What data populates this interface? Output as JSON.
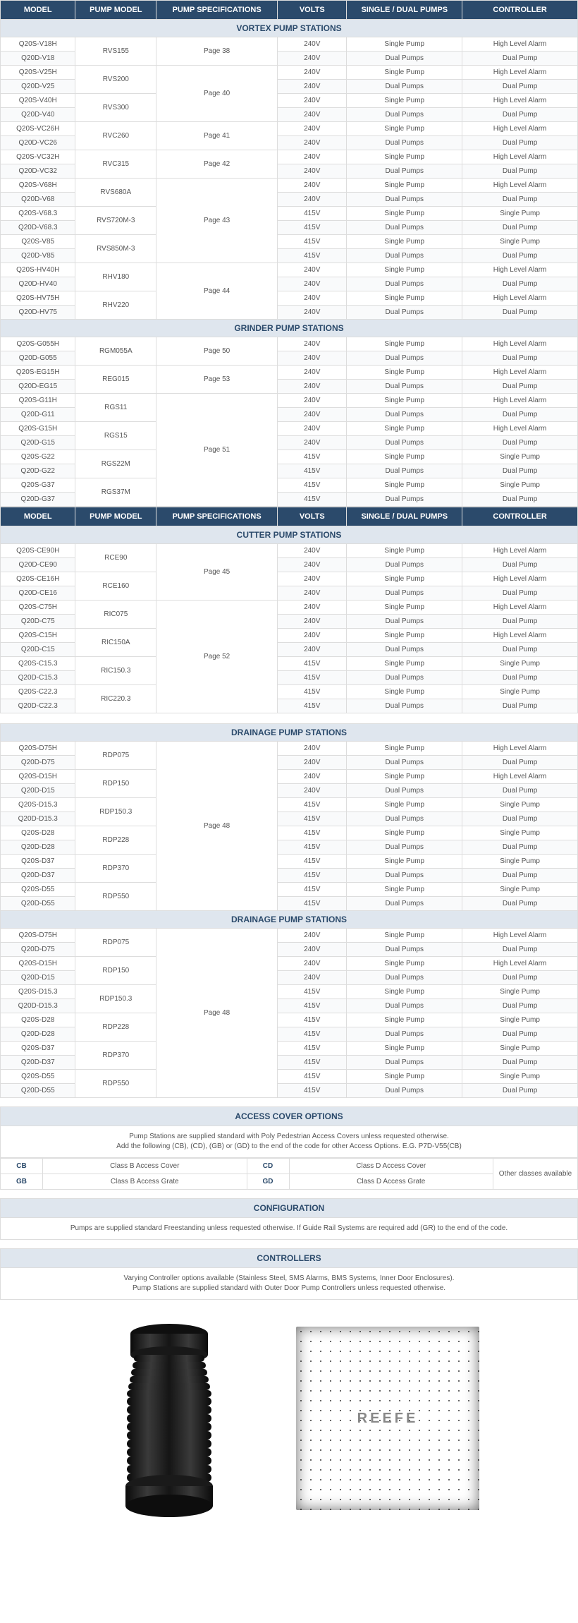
{
  "headers": [
    "MODEL",
    "PUMP MODEL",
    "PUMP SPECIFICATIONS",
    "VOLTS",
    "SINGLE / DUAL PUMPS",
    "CONTROLLER"
  ],
  "sections": [
    {
      "title": "VORTEX PUMP STATIONS",
      "groups": [
        {
          "pump": "RVS155",
          "spec": "Page 38",
          "rows": [
            [
              "Q20S-V18H",
              "240V",
              "Single Pump",
              "High Level Alarm"
            ],
            [
              "Q20D-V18",
              "240V",
              "Dual Pumps",
              "Dual Pump"
            ]
          ]
        },
        {
          "pump": "RVS200",
          "spec": "Page 40",
          "specSpan": 4,
          "rows": [
            [
              "Q20S-V25H",
              "240V",
              "Single Pump",
              "High Level Alarm"
            ],
            [
              "Q20D-V25",
              "240V",
              "Dual Pumps",
              "Dual Pump"
            ]
          ]
        },
        {
          "pump": "RVS300",
          "rows": [
            [
              "Q20S-V40H",
              "240V",
              "Single Pump",
              "High Level Alarm"
            ],
            [
              "Q20D-V40",
              "240V",
              "Dual Pumps",
              "Dual Pump"
            ]
          ]
        },
        {
          "pump": "RVC260",
          "spec": "Page 41",
          "rows": [
            [
              "Q20S-VC26H",
              "240V",
              "Single Pump",
              "High Level Alarm"
            ],
            [
              "Q20D-VC26",
              "240V",
              "Dual Pumps",
              "Dual Pump"
            ]
          ]
        },
        {
          "pump": "RVC315",
          "spec": "Page 42",
          "rows": [
            [
              "Q20S-VC32H",
              "240V",
              "Single Pump",
              "High Level Alarm"
            ],
            [
              "Q20D-VC32",
              "240V",
              "Dual Pumps",
              "Dual Pump"
            ]
          ]
        },
        {
          "pump": "RVS680A",
          "spec": "Page 43",
          "specSpan": 6,
          "rows": [
            [
              "Q20S-V68H",
              "240V",
              "Single Pump",
              "High Level Alarm"
            ],
            [
              "Q20D-V68",
              "240V",
              "Dual Pumps",
              "Dual Pump"
            ]
          ]
        },
        {
          "pump": "RVS720M-3",
          "rows": [
            [
              "Q20S-V68.3",
              "415V",
              "Single Pump",
              "Single Pump"
            ],
            [
              "Q20D-V68.3",
              "415V",
              "Dual Pumps",
              "Dual Pump"
            ]
          ]
        },
        {
          "pump": "RVS850M-3",
          "rows": [
            [
              "Q20S-V85",
              "415V",
              "Single Pump",
              "Single Pump"
            ],
            [
              "Q20D-V85",
              "415V",
              "Dual Pumps",
              "Dual Pump"
            ]
          ]
        },
        {
          "pump": "RHV180",
          "spec": "Page 44",
          "specSpan": 4,
          "rows": [
            [
              "Q20S-HV40H",
              "240V",
              "Single Pump",
              "High Level Alarm"
            ],
            [
              "Q20D-HV40",
              "240V",
              "Dual Pumps",
              "Dual Pump"
            ]
          ]
        },
        {
          "pump": "RHV220",
          "rows": [
            [
              "Q20S-HV75H",
              "240V",
              "Single Pump",
              "High Level Alarm"
            ],
            [
              "Q20D-HV75",
              "240V",
              "Dual Pumps",
              "Dual Pump"
            ]
          ]
        }
      ]
    },
    {
      "title": "GRINDER PUMP STATIONS",
      "groups": [
        {
          "pump": "RGM055A",
          "spec": "Page 50",
          "rows": [
            [
              "Q20S-G055H",
              "240V",
              "Single Pump",
              "High Level Alarm"
            ],
            [
              "Q20D-G055",
              "240V",
              "Dual Pumps",
              "Dual Pump"
            ]
          ]
        },
        {
          "pump": "REG015",
          "spec": "Page 53",
          "rows": [
            [
              "Q20S-EG15H",
              "240V",
              "Single Pump",
              "High Level Alarm"
            ],
            [
              "Q20D-EG15",
              "240V",
              "Dual Pumps",
              "Dual Pump"
            ]
          ]
        },
        {
          "pump": "RGS11",
          "spec": "Page 51",
          "specSpan": 8,
          "rows": [
            [
              "Q20S-G11H",
              "240V",
              "Single Pump",
              "High Level Alarm"
            ],
            [
              "Q20D-G11",
              "240V",
              "Dual Pumps",
              "Dual Pump"
            ]
          ]
        },
        {
          "pump": "RGS15",
          "rows": [
            [
              "Q20S-G15H",
              "240V",
              "Single Pump",
              "High Level Alarm"
            ],
            [
              "Q20D-G15",
              "240V",
              "Dual Pumps",
              "Dual Pump"
            ]
          ]
        },
        {
          "pump": "RGS22M",
          "rows": [
            [
              "Q20S-G22",
              "415V",
              "Single Pump",
              "Single Pump"
            ],
            [
              "Q20D-G22",
              "415V",
              "Dual Pumps",
              "Dual Pump"
            ]
          ]
        },
        {
          "pump": "RGS37M",
          "rows": [
            [
              "Q20S-G37",
              "415V",
              "Single Pump",
              "Single Pump"
            ],
            [
              "Q20D-G37",
              "415V",
              "Dual Pumps",
              "Dual Pump"
            ]
          ]
        }
      ]
    },
    {
      "repeatHeader": true,
      "title": "CUTTER PUMP STATIONS",
      "groups": [
        {
          "pump": "RCE90",
          "spec": "Page 45",
          "specSpan": 4,
          "rows": [
            [
              "Q20S-CE90H",
              "240V",
              "Single Pump",
              "High Level Alarm"
            ],
            [
              "Q20D-CE90",
              "240V",
              "Dual Pumps",
              "Dual Pump"
            ]
          ]
        },
        {
          "pump": "RCE160",
          "rows": [
            [
              "Q20S-CE16H",
              "240V",
              "Single Pump",
              "High Level Alarm"
            ],
            [
              "Q20D-CE16",
              "240V",
              "Dual Pumps",
              "Dual Pump"
            ]
          ]
        },
        {
          "pump": "RIC075",
          "spec": "Page 52",
          "specSpan": 8,
          "rows": [
            [
              "Q20S-C75H",
              "240V",
              "Single Pump",
              "High Level Alarm"
            ],
            [
              "Q20D-C75",
              "240V",
              "Dual Pumps",
              "Dual Pump"
            ]
          ]
        },
        {
          "pump": "RIC150A",
          "rows": [
            [
              "Q20S-C15H",
              "240V",
              "Single Pump",
              "High Level Alarm"
            ],
            [
              "Q20D-C15",
              "240V",
              "Dual Pumps",
              "Dual Pump"
            ]
          ]
        },
        {
          "pump": "RIC150.3",
          "rows": [
            [
              "Q20S-C15.3",
              "415V",
              "Single Pump",
              "Single Pump"
            ],
            [
              "Q20D-C15.3",
              "415V",
              "Dual Pumps",
              "Dual Pump"
            ]
          ]
        },
        {
          "pump": "RIC220.3",
          "rows": [
            [
              "Q20S-C22.3",
              "415V",
              "Single Pump",
              "Single Pump"
            ],
            [
              "Q20D-C22.3",
              "415V",
              "Dual Pumps",
              "Dual Pump"
            ]
          ]
        }
      ]
    },
    {
      "spacer": true,
      "title": "DRAINAGE PUMP STATIONS",
      "groups": [
        {
          "pump": "RDP075",
          "spec": "Page 48",
          "specSpan": 12,
          "rows": [
            [
              "Q20S-D75H",
              "240V",
              "Single Pump",
              "High Level Alarm"
            ],
            [
              "Q20D-D75",
              "240V",
              "Dual Pumps",
              "Dual Pump"
            ]
          ]
        },
        {
          "pump": "RDP150",
          "rows": [
            [
              "Q20S-D15H",
              "240V",
              "Single Pump",
              "High Level Alarm"
            ],
            [
              "Q20D-D15",
              "240V",
              "Dual Pumps",
              "Dual Pump"
            ]
          ]
        },
        {
          "pump": "RDP150.3",
          "rows": [
            [
              "Q20S-D15.3",
              "415V",
              "Single Pump",
              "Single Pump"
            ],
            [
              "Q20D-D15.3",
              "415V",
              "Dual Pumps",
              "Dual Pump"
            ]
          ]
        },
        {
          "pump": "RDP228",
          "rows": [
            [
              "Q20S-D28",
              "415V",
              "Single Pump",
              "Single Pump"
            ],
            [
              "Q20D-D28",
              "415V",
              "Dual Pumps",
              "Dual Pump"
            ]
          ]
        },
        {
          "pump": "RDP370",
          "rows": [
            [
              "Q20S-D37",
              "415V",
              "Single Pump",
              "Single Pump"
            ],
            [
              "Q20D-D37",
              "415V",
              "Dual Pumps",
              "Dual Pump"
            ]
          ]
        },
        {
          "pump": "RDP550",
          "rows": [
            [
              "Q20S-D55",
              "415V",
              "Single Pump",
              "Single Pump"
            ],
            [
              "Q20D-D55",
              "415V",
              "Dual Pumps",
              "Dual Pump"
            ]
          ]
        }
      ]
    },
    {
      "title": "DRAINAGE PUMP STATIONS",
      "groups": [
        {
          "pump": "RDP075",
          "spec": "Page 48",
          "specSpan": 12,
          "rows": [
            [
              "Q20S-D75H",
              "240V",
              "Single Pump",
              "High Level Alarm"
            ],
            [
              "Q20D-D75",
              "240V",
              "Dual Pumps",
              "Dual Pump"
            ]
          ]
        },
        {
          "pump": "RDP150",
          "rows": [
            [
              "Q20S-D15H",
              "240V",
              "Single Pump",
              "High Level Alarm"
            ],
            [
              "Q20D-D15",
              "240V",
              "Dual Pumps",
              "Dual Pump"
            ]
          ]
        },
        {
          "pump": "RDP150.3",
          "rows": [
            [
              "Q20S-D15.3",
              "415V",
              "Single Pump",
              "Single Pump"
            ],
            [
              "Q20D-D15.3",
              "415V",
              "Dual Pumps",
              "Dual Pump"
            ]
          ]
        },
        {
          "pump": "RDP228",
          "rows": [
            [
              "Q20S-D28",
              "415V",
              "Single Pump",
              "Single Pump"
            ],
            [
              "Q20D-D28",
              "415V",
              "Dual Pumps",
              "Dual Pump"
            ]
          ]
        },
        {
          "pump": "RDP370",
          "rows": [
            [
              "Q20S-D37",
              "415V",
              "Single Pump",
              "Single Pump"
            ],
            [
              "Q20D-D37",
              "415V",
              "Dual Pumps",
              "Dual Pump"
            ]
          ]
        },
        {
          "pump": "RDP550",
          "rows": [
            [
              "Q20S-D55",
              "415V",
              "Single Pump",
              "Single Pump"
            ],
            [
              "Q20D-D55",
              "415V",
              "Dual Pumps",
              "Dual Pump"
            ]
          ]
        }
      ]
    }
  ],
  "access": {
    "title": "ACCESS COVER OPTIONS",
    "desc": "Pump Stations are supplied standard with Poly Pedestrian Access Covers unless requested otherwise.\nAdd the following (CB), (CD), (GB) or (GD) to the end of the code for other Access Options. E.G. P7D-V55(CB)",
    "grid": [
      [
        "CB",
        "Class B Access Cover",
        "CD",
        "Class D Access Cover"
      ],
      [
        "GB",
        "Class B Access Grate",
        "GD",
        "Class D Access Grate"
      ]
    ],
    "side": "Other classes available"
  },
  "config": {
    "title": "CONFIGURATION",
    "desc": "Pumps are supplied standard Freestanding unless requested otherwise. If Guide Rail Systems are required add (GR) to the end of the code."
  },
  "controllers": {
    "title": "CONTROLLERS",
    "desc": "Varying Controller options available (Stainless Steel, SMS Alarms, BMS Systems, Inner Door Enclosures).\nPump Stations are supplied standard with Outer Door Pump Controllers unless requested otherwise."
  },
  "brand": "REEFE"
}
